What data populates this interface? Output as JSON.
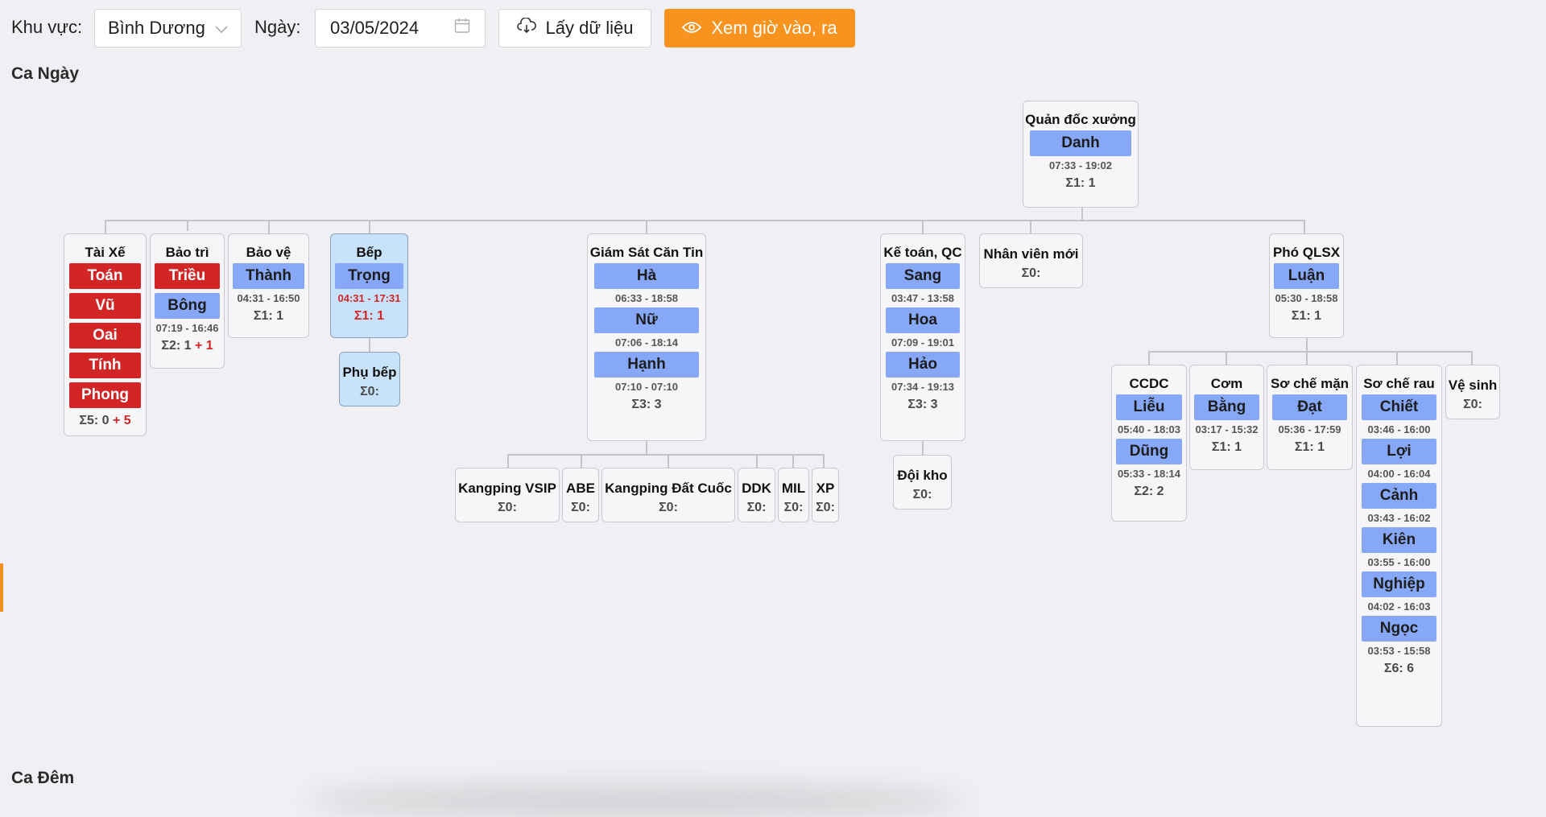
{
  "toolbar": {
    "area_label": "Khu vực:",
    "area_value": "Bình Dương",
    "date_label": "Ngày:",
    "date_value": "03/05/2024",
    "fetch_label": "Lấy dữ liệu",
    "view_label": "Xem giờ vào, ra",
    "accent_color": "#f7931e"
  },
  "sections": {
    "day": "Ca Ngày",
    "night": "Ca Đêm"
  },
  "nodes": {
    "quan_doc": {
      "title": "Quản đốc xưởng",
      "sum": "Σ1: 1",
      "people": [
        {
          "name": "Danh",
          "time": "07:33 - 19:02"
        }
      ]
    },
    "tai_xe": {
      "title": "Tài Xế",
      "sum": "Σ5: 0",
      "extra": "+ 5",
      "people": [
        {
          "name": "Toán"
        },
        {
          "name": "Vũ"
        },
        {
          "name": "Oai"
        },
        {
          "name": "Tính"
        },
        {
          "name": "Phong"
        }
      ]
    },
    "bao_tri": {
      "title": "Bảo trì",
      "sum": "Σ2: 1",
      "extra": "+ 1",
      "people": [
        {
          "name": "Triều"
        },
        {
          "name": "Bông",
          "time": "07:19 - 16:46"
        }
      ]
    },
    "bao_ve": {
      "title": "Bảo vệ",
      "sum": "Σ1: 1",
      "people": [
        {
          "name": "Thành",
          "time": "04:31 - 16:50"
        }
      ]
    },
    "bep": {
      "title": "Bếp",
      "sum": "Σ1: 1",
      "people": [
        {
          "name": "Trọng",
          "time": "04:31 - 17:31"
        }
      ]
    },
    "phu_bep": {
      "title": "Phụ bếp",
      "sum": "Σ0:"
    },
    "giam_sat": {
      "title": "Giám Sát Căn Tin",
      "sum": "Σ3: 3",
      "people": [
        {
          "name": "Hà",
          "time": "06:33 - 18:58"
        },
        {
          "name": "Nữ",
          "time": "07:06 - 18:14"
        },
        {
          "name": "Hạnh",
          "time": "07:10 - 07:10"
        }
      ]
    },
    "kangping_vsip": {
      "title": "Kangping VSIP",
      "sum": "Σ0:"
    },
    "abe": {
      "title": "ABE",
      "sum": "Σ0:"
    },
    "kangping_dc": {
      "title": "Kangping Đất Cuốc",
      "sum": "Σ0:"
    },
    "ddk": {
      "title": "DDK",
      "sum": "Σ0:"
    },
    "mil": {
      "title": "MIL",
      "sum": "Σ0:"
    },
    "xp": {
      "title": "XP",
      "sum": "Σ0:"
    },
    "ke_toan": {
      "title": "Kế toán, QC",
      "sum": "Σ3: 3",
      "people": [
        {
          "name": "Sang",
          "time": "03:47 - 13:58"
        },
        {
          "name": "Hoa",
          "time": "07:09 - 19:01"
        },
        {
          "name": "Hảo",
          "time": "07:34 - 19:13"
        }
      ]
    },
    "doi_kho": {
      "title": "Đội kho",
      "sum": "Σ0:"
    },
    "nv_moi": {
      "title": "Nhân viên mới",
      "sum": "Σ0:"
    },
    "pho_qlsx": {
      "title": "Phó QLSX",
      "sum": "Σ1: 1",
      "people": [
        {
          "name": "Luận",
          "time": "05:30 - 18:58"
        }
      ]
    },
    "ccdc": {
      "title": "CCDC",
      "sum": "Σ2: 2",
      "people": [
        {
          "name": "Liễu",
          "time": "05:40 - 18:03"
        },
        {
          "name": "Dũng",
          "time": "05:33 - 18:14"
        }
      ]
    },
    "com": {
      "title": "Cơm",
      "sum": "Σ1: 1",
      "people": [
        {
          "name": "Bằng",
          "time": "03:17 - 15:32"
        }
      ]
    },
    "so_che_man": {
      "title": "Sơ chế mặn",
      "sum": "Σ1: 1",
      "people": [
        {
          "name": "Đạt",
          "time": "05:36 - 17:59"
        }
      ]
    },
    "so_che_rau": {
      "title": "Sơ chế rau",
      "sum": "Σ6: 6",
      "people": [
        {
          "name": "Chiết",
          "time": "03:46 - 16:00"
        },
        {
          "name": "Lợi",
          "time": "04:00 - 16:04"
        },
        {
          "name": "Cảnh",
          "time": "03:43 - 16:02"
        },
        {
          "name": "Kiên",
          "time": "03:55 - 16:00"
        },
        {
          "name": "Nghiệp",
          "time": "04:02 - 16:03"
        },
        {
          "name": "Ngọc",
          "time": "03:53 - 15:58"
        }
      ]
    },
    "ve_sinh": {
      "title": "Vệ sinh",
      "sum": "Σ0:"
    }
  }
}
